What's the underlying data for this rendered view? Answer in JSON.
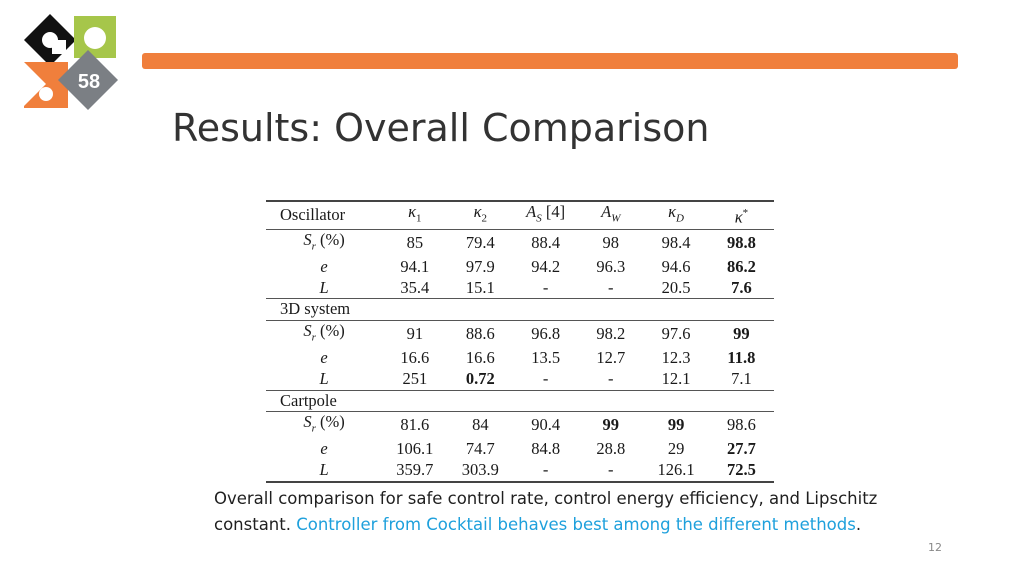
{
  "slide": {
    "logo_text": "58",
    "title": "Results: Overall Comparison",
    "page_number": "12",
    "accent_color": "#f07f3c",
    "highlight_color": "#1ea0dc"
  },
  "table": {
    "headers": [
      "Oscillator",
      "κ₁",
      "κ₂",
      "A_S [4]",
      "A_W",
      "κ_D",
      "κ*"
    ],
    "sections": [
      {
        "name": "3D system",
        "rows": [
          {
            "label": "S_r (%)",
            "values": [
              "91",
              "88.6",
              "96.8",
              "98.2",
              "97.6",
              "99"
            ]
          },
          {
            "label": "e",
            "values": [
              "16.6",
              "16.6",
              "13.5",
              "12.7",
              "12.3",
              "11.8"
            ]
          },
          {
            "label": "L",
            "values": [
              "251",
              "0.72",
              "-",
              "-",
              "12.1",
              "7.1"
            ]
          }
        ]
      },
      {
        "name": "Cartpole",
        "rows": [
          {
            "label": "S_r (%)",
            "values": [
              "81.6",
              "84",
              "90.4",
              "99",
              "99",
              "98.6"
            ]
          },
          {
            "label": "e",
            "values": [
              "106.1",
              "74.7",
              "84.8",
              "28.8",
              "29",
              "27.7"
            ]
          },
          {
            "label": "L",
            "values": [
              "359.7",
              "303.9",
              "-",
              "-",
              "126.1",
              "72.5"
            ]
          }
        ]
      }
    ],
    "oscillator_rows": [
      {
        "label": "S_r (%)",
        "values": [
          "85",
          "79.4",
          "88.4",
          "98",
          "98.4",
          "98.8"
        ]
      },
      {
        "label": "e",
        "values": [
          "94.1",
          "97.9",
          "94.2",
          "96.3",
          "94.6",
          "86.2"
        ]
      },
      {
        "label": "L",
        "values": [
          "35.4",
          "15.1",
          "-",
          "-",
          "20.5",
          "7.6"
        ]
      }
    ]
  },
  "caption": {
    "text_plain": "Overall comparison for safe control rate, control energy efficiency, and Lipschitz constant.",
    "text_highlight": "Controller from Cocktail behaves best among the different methods",
    "text_end": "."
  }
}
